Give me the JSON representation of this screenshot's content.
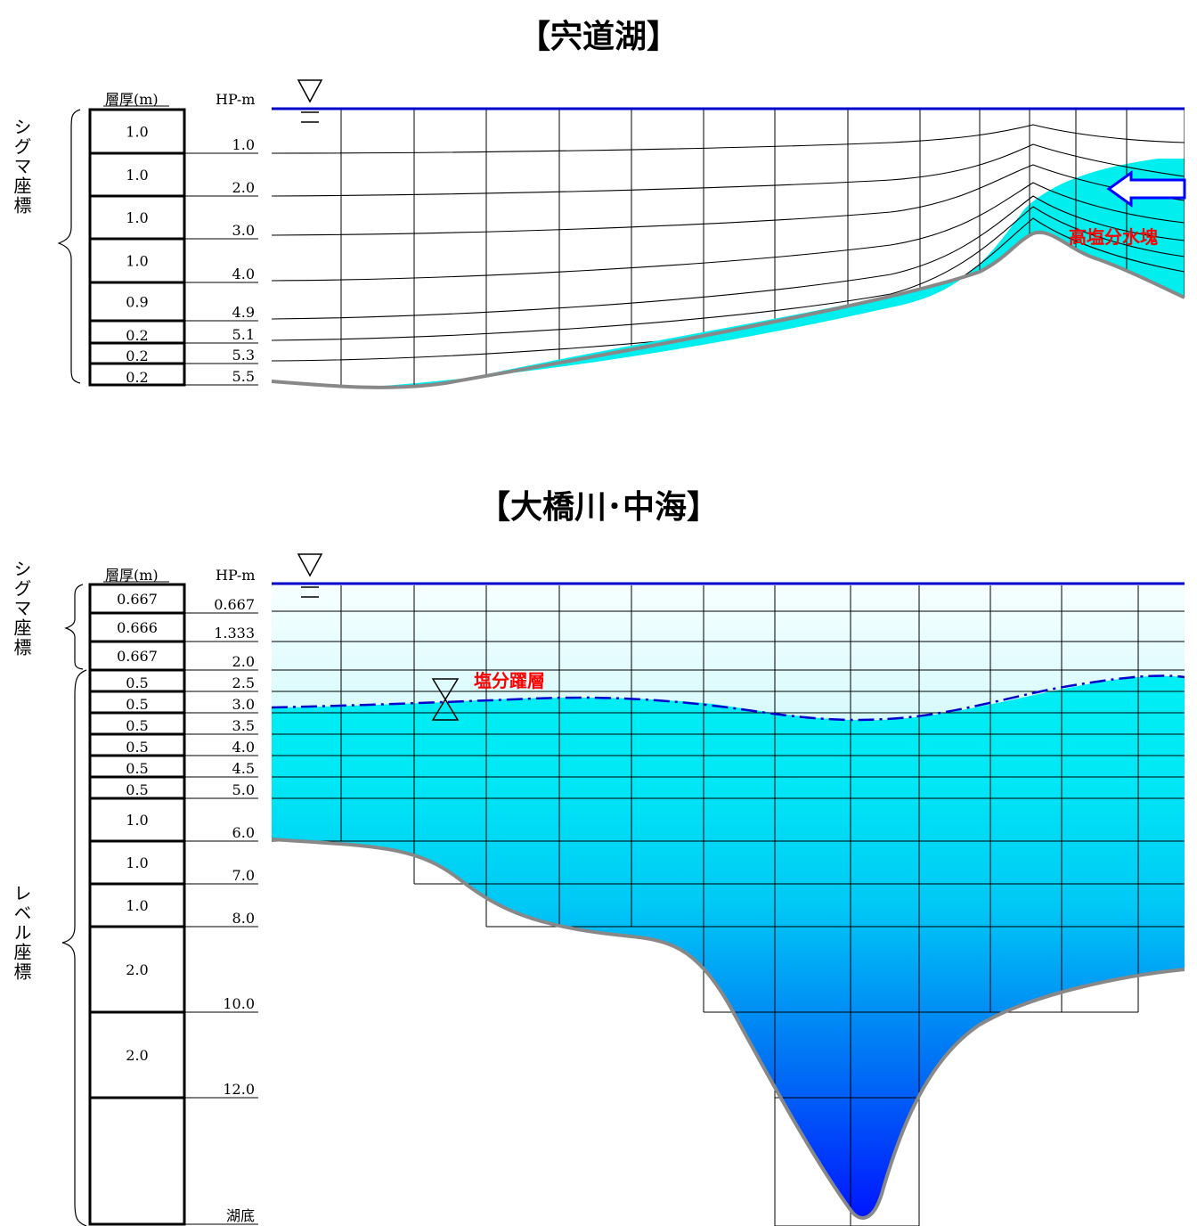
{
  "titles": {
    "top": "【宍道湖】",
    "bottom": "【大橋川･中海】"
  },
  "labels": {
    "layer_thickness": "層厚(m)",
    "hp": "HP-m",
    "sigma_coord": "シグマ座標",
    "level_coord": "レベル座標",
    "high_salinity": "高塩分水塊",
    "halocline": "塩分躍層",
    "lake_bottom": "湖底"
  },
  "top_panel": {
    "layers": [
      {
        "thickness": "1.0",
        "depth": "1.0"
      },
      {
        "thickness": "1.0",
        "depth": "2.0"
      },
      {
        "thickness": "1.0",
        "depth": "3.0"
      },
      {
        "thickness": "1.0",
        "depth": "4.0"
      },
      {
        "thickness": "0.9",
        "depth": "4.9"
      },
      {
        "thickness": "0.2",
        "depth": "5.1"
      },
      {
        "thickness": "0.2",
        "depth": "5.3"
      },
      {
        "thickness": "0.2",
        "depth": "5.5"
      }
    ]
  },
  "bottom_panel": {
    "layers": [
      {
        "thickness": "0.667",
        "depth": "0.667"
      },
      {
        "thickness": "0.666",
        "depth": "1.333"
      },
      {
        "thickness": "0.667",
        "depth": "2.0"
      },
      {
        "thickness": "0.5",
        "depth": "2.5"
      },
      {
        "thickness": "0.5",
        "depth": "3.0"
      },
      {
        "thickness": "0.5",
        "depth": "3.5"
      },
      {
        "thickness": "0.5",
        "depth": "4.0"
      },
      {
        "thickness": "0.5",
        "depth": "4.5"
      },
      {
        "thickness": "0.5",
        "depth": "5.0"
      },
      {
        "thickness": "1.0",
        "depth": "6.0"
      },
      {
        "thickness": "1.0",
        "depth": "7.0"
      },
      {
        "thickness": "1.0",
        "depth": "8.0"
      },
      {
        "thickness": "2.0",
        "depth": "10.0"
      },
      {
        "thickness": "2.0",
        "depth": "12.0"
      },
      {
        "thickness": "",
        "depth": "湖底"
      }
    ]
  },
  "colors": {
    "surface_line": "#0000cc",
    "high_salinity_water": "#00eeee",
    "label_red": "#ff0000",
    "bottom_line": "#888888",
    "arrow": "#0000ff",
    "halocline_line": "#0000cc"
  }
}
